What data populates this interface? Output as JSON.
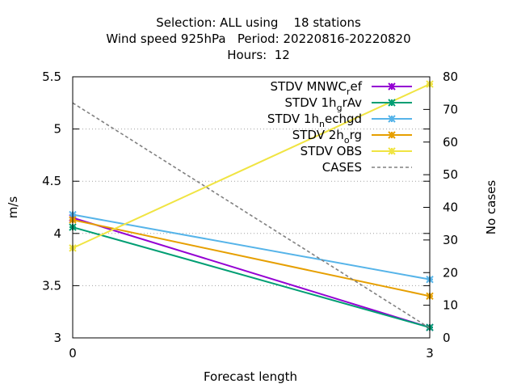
{
  "chart_data": {
    "type": "line",
    "title_lines": [
      "Selection: ALL using    18 stations",
      "Wind speed 925hPa   Period: 20220816-20220820",
      "Hours:  12"
    ],
    "xlabel": "Forecast length",
    "ylabel": "m/s",
    "y2label": "No cases",
    "x": [
      0,
      3
    ],
    "xlim": [
      0,
      3
    ],
    "ylim": [
      3,
      5.5
    ],
    "y2lim": [
      0,
      80
    ],
    "x_ticks": [
      0,
      3
    ],
    "y_ticks": [
      3,
      3.5,
      4,
      4.5,
      5,
      5.5
    ],
    "y_tick_labels": [
      "3",
      "3.5",
      "4",
      "4.5",
      "5",
      "5.5"
    ],
    "y2_ticks": [
      0,
      10,
      20,
      30,
      40,
      50,
      60,
      70,
      80
    ],
    "grid": "dotted",
    "legend_position": "top-right",
    "series": [
      {
        "name": "STDV MNWC_ref",
        "legend_parts": [
          [
            "STDV MNWC",
            false
          ],
          [
            "r",
            true
          ],
          [
            "ef",
            false
          ]
        ],
        "values": [
          4.15,
          3.1
        ],
        "axis": "left",
        "color": "#9400d3",
        "marker": "x-star",
        "style": "solid"
      },
      {
        "name": "STDV 1h_grAv",
        "legend_parts": [
          [
            "STDV 1h",
            false
          ],
          [
            "g",
            true
          ],
          [
            "rAv",
            false
          ]
        ],
        "values": [
          4.06,
          3.1
        ],
        "axis": "left",
        "color": "#009e73",
        "marker": "x-star",
        "style": "solid"
      },
      {
        "name": "STDV 1h_nechgd",
        "legend_parts": [
          [
            "STDV 1h",
            false
          ],
          [
            "n",
            true
          ],
          [
            "echgd",
            false
          ]
        ],
        "values": [
          4.18,
          3.56
        ],
        "axis": "left",
        "color": "#56b4e9",
        "marker": "x-star",
        "style": "solid"
      },
      {
        "name": "STDV 2h_org",
        "legend_parts": [
          [
            "STDV 2h",
            false
          ],
          [
            "o",
            true
          ],
          [
            "rg",
            false
          ]
        ],
        "values": [
          4.13,
          3.4
        ],
        "axis": "left",
        "color": "#e69f00",
        "marker": "x-star",
        "style": "solid"
      },
      {
        "name": "STDV OBS",
        "legend_parts": [
          [
            "STDV OBS",
            false
          ]
        ],
        "values": [
          3.86,
          5.43
        ],
        "axis": "left",
        "color": "#f0e442",
        "marker": "x-star",
        "style": "solid"
      },
      {
        "name": "CASES",
        "legend_parts": [
          [
            "CASES",
            false
          ]
        ],
        "values": [
          72,
          3
        ],
        "axis": "right",
        "color": "#808080",
        "marker": "none",
        "style": "dashed"
      }
    ]
  }
}
